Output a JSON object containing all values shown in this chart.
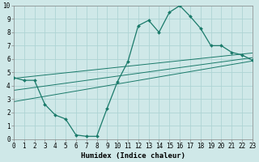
{
  "background_color": "#cfe8e8",
  "grid_color": "#aed4d4",
  "line_color": "#1a7a6a",
  "xlabel": "Humidex (Indice chaleur)",
  "ylim": [
    0,
    10
  ],
  "xlim": [
    0,
    23
  ],
  "yticks": [
    0,
    1,
    2,
    3,
    4,
    5,
    6,
    7,
    8,
    9,
    10
  ],
  "xticks": [
    0,
    1,
    2,
    3,
    4,
    5,
    6,
    7,
    8,
    9,
    10,
    11,
    12,
    13,
    14,
    15,
    16,
    17,
    18,
    19,
    20,
    21,
    22,
    23
  ],
  "main_line_x": [
    0,
    1,
    2,
    3,
    4,
    5,
    6,
    7,
    8,
    9,
    10,
    11,
    12,
    13,
    14,
    15,
    16,
    17,
    18,
    19,
    20,
    21,
    22,
    23
  ],
  "main_line_y": [
    4.6,
    4.4,
    4.4,
    2.6,
    1.8,
    1.5,
    0.3,
    0.2,
    0.2,
    2.3,
    4.3,
    5.8,
    8.5,
    8.9,
    8.0,
    9.5,
    10.0,
    9.2,
    8.3,
    7.0,
    7.0,
    6.5,
    6.3,
    5.9
  ],
  "upper_line_x": [
    0,
    23
  ],
  "upper_line_y": [
    4.55,
    6.45
  ],
  "lower_line_x": [
    0,
    23
  ],
  "lower_line_y": [
    2.8,
    5.85
  ],
  "mid_line_x": [
    0,
    23
  ],
  "mid_line_y": [
    3.65,
    6.1
  ],
  "tick_fontsize": 5.5,
  "xlabel_fontsize": 6.5
}
